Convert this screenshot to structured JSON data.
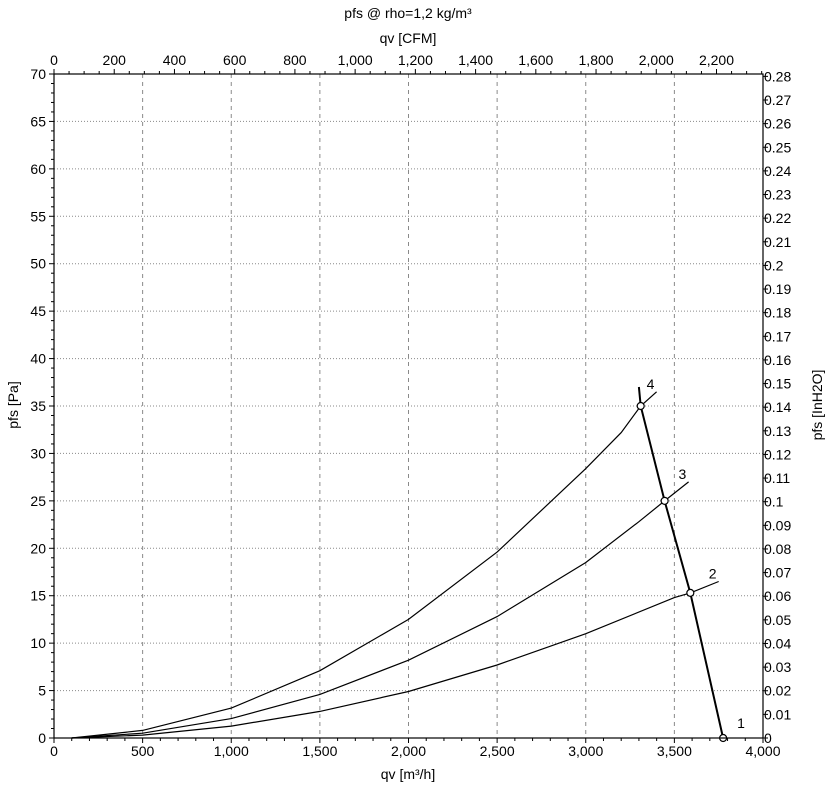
{
  "chart_data": {
    "type": "line",
    "title": "pfs @ rho=1,2 kg/m³",
    "x_bottom": {
      "label": "qv [m³/h]",
      "range": [
        0,
        4000
      ],
      "ticks": [
        0,
        500,
        1000,
        1500,
        2000,
        2500,
        3000,
        3500,
        4000
      ],
      "tick_labels": [
        "0",
        "500",
        "1,000",
        "1,500",
        "2,000",
        "2,500",
        "3,000",
        "3,500",
        "4,000"
      ]
    },
    "x_top": {
      "label": "qv [CFM]",
      "range": [
        0,
        2354.4
      ],
      "ticks": [
        0,
        200,
        400,
        600,
        800,
        1000,
        1200,
        1400,
        1600,
        1800,
        2000,
        2200
      ],
      "tick_labels": [
        "0",
        "200",
        "400",
        "600",
        "800",
        "1,000",
        "1,200",
        "1,400",
        "1,600",
        "1,800",
        "2,000",
        "2,200"
      ]
    },
    "y_left": {
      "label": "pfs [Pa]",
      "range": [
        0,
        70
      ],
      "ticks": [
        0,
        5,
        10,
        15,
        20,
        25,
        30,
        35,
        40,
        45,
        50,
        55,
        60,
        65,
        70
      ],
      "tick_labels": [
        "0",
        "5",
        "10",
        "15",
        "20",
        "25",
        "30",
        "35",
        "40",
        "45",
        "50",
        "55",
        "60",
        "65",
        "70"
      ]
    },
    "y_right": {
      "label": "pfs [InH2O]",
      "range": [
        0,
        0.281
      ],
      "ticks": [
        0,
        0.01,
        0.02,
        0.03,
        0.04,
        0.05,
        0.06,
        0.07,
        0.08,
        0.09,
        0.1,
        0.11,
        0.12,
        0.13,
        0.14,
        0.15,
        0.16,
        0.17,
        0.18,
        0.19,
        0.2,
        0.21,
        0.22,
        0.23,
        0.24,
        0.25,
        0.26,
        0.27,
        0.28
      ],
      "tick_labels": [
        "0",
        "0.01",
        "0.02",
        "0.03",
        "0.04",
        "0.05",
        "0.06",
        "0.07",
        "0.08",
        "0.09",
        "0.1",
        "0.11",
        "0.12",
        "0.13",
        "0.14",
        "0.15",
        "0.16",
        "0.17",
        "0.18",
        "0.19",
        "0.2",
        "0.21",
        "0.22",
        "0.23",
        "0.24",
        "0.25",
        "0.26",
        "0.27",
        "0.28"
      ]
    },
    "grid": true,
    "series": [
      {
        "label": "2",
        "curve": [
          [
            100,
            0
          ],
          [
            500,
            0.31
          ],
          [
            1000,
            1.25
          ],
          [
            1500,
            2.8
          ],
          [
            2000,
            4.9
          ],
          [
            2500,
            7.7
          ],
          [
            3000,
            11.0
          ],
          [
            3500,
            14.8
          ],
          [
            3590,
            15.3
          ],
          [
            3750,
            16.5
          ]
        ],
        "operating_point": [
          3590,
          15.3
        ]
      },
      {
        "label": "3",
        "curve": [
          [
            100,
            0
          ],
          [
            500,
            0.51
          ],
          [
            1000,
            2.05
          ],
          [
            1500,
            4.6
          ],
          [
            2000,
            8.2
          ],
          [
            2500,
            12.8
          ],
          [
            3000,
            18.5
          ],
          [
            3300,
            22.8
          ],
          [
            3445,
            25.0
          ],
          [
            3580,
            27.0
          ]
        ],
        "operating_point": [
          3445,
          25.0
        ]
      },
      {
        "label": "4",
        "curve": [
          [
            100,
            0
          ],
          [
            500,
            0.8
          ],
          [
            1000,
            3.15
          ],
          [
            1500,
            7.1
          ],
          [
            2000,
            12.5
          ],
          [
            2500,
            19.6
          ],
          [
            3000,
            28.4
          ],
          [
            3200,
            32.2
          ],
          [
            3310,
            35.0
          ],
          [
            3400,
            36.5
          ]
        ],
        "operating_point": [
          3310,
          35.0
        ]
      }
    ],
    "operating_line": {
      "label": "1",
      "points": [
        [
          3300,
          37.0
        ],
        [
          3310,
          35.0
        ],
        [
          3445,
          25.0
        ],
        [
          3590,
          15.3
        ],
        [
          3775,
          0
        ]
      ],
      "end_point": [
        3775,
        0
      ]
    }
  }
}
